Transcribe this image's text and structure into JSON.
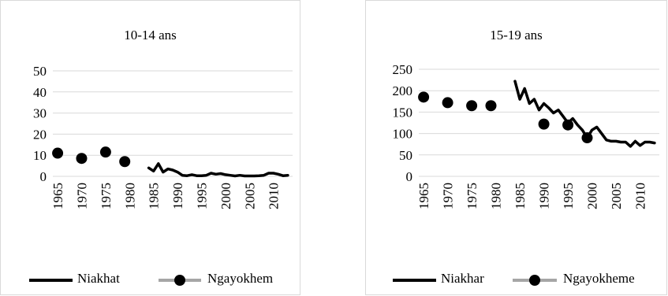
{
  "chart_data": [
    {
      "type": "line",
      "title": "10-14 ans",
      "xlabel": "",
      "ylabel": "",
      "ylim": [
        0,
        50
      ],
      "yticks": [
        "0",
        "10",
        "20",
        "30",
        "40",
        "50"
      ],
      "xlim": [
        1964,
        2014
      ],
      "xticks": [
        "1965",
        "1970",
        "1975",
        "1980",
        "1985",
        "1990",
        "1995",
        "2000",
        "2005",
        "2010"
      ],
      "grid": true,
      "legend": "bottom",
      "series": [
        {
          "name": "Niakhat",
          "style": "line",
          "color": "#000000",
          "x": [
            1984,
            1985,
            1986,
            1987,
            1988,
            1989,
            1990,
            1991,
            1992,
            1993,
            1994,
            1995,
            1996,
            1997,
            1998,
            1999,
            2000,
            2001,
            2002,
            2003,
            2004,
            2005,
            2006,
            2007,
            2008,
            2009,
            2010,
            2011,
            2012,
            2013
          ],
          "y": [
            4,
            2.5,
            6,
            2,
            3.5,
            3,
            2,
            0.5,
            0.3,
            0.8,
            0.3,
            0.3,
            0.5,
            1.5,
            1,
            1.3,
            0.8,
            0.5,
            0.2,
            0.5,
            0.2,
            0.2,
            0.2,
            0.3,
            0.5,
            1.5,
            1.5,
            1,
            0.3,
            0.5
          ]
        },
        {
          "name": "Ngayokhem",
          "style": "dots",
          "color": "#000000",
          "legend_line_color": "#a6a6a6",
          "x": [
            1965,
            1970,
            1975,
            1979
          ],
          "y": [
            11,
            8.5,
            11.5,
            7
          ]
        }
      ]
    },
    {
      "type": "line",
      "title": "15-19 ans",
      "xlabel": "",
      "ylabel": "",
      "ylim": [
        0,
        250
      ],
      "yticks": [
        "0",
        "50",
        "100",
        "150",
        "200",
        "250"
      ],
      "xlim": [
        1964,
        2014
      ],
      "xticks": [
        "1965",
        "1970",
        "1975",
        "1980",
        "1985",
        "1990",
        "1995",
        "2000",
        "2005",
        "2010"
      ],
      "grid": true,
      "legend": "bottom",
      "series": [
        {
          "name": "Niakhar",
          "style": "line",
          "color": "#000000",
          "x": [
            1984,
            1985,
            1986,
            1987,
            1988,
            1989,
            1990,
            1991,
            1992,
            1993,
            1994,
            1995,
            1996,
            1997,
            1998,
            1999,
            2000,
            2001,
            2002,
            2003,
            2004,
            2005,
            2006,
            2007,
            2008,
            2009,
            2010,
            2011,
            2012,
            2013
          ],
          "y": [
            222,
            180,
            205,
            170,
            180,
            155,
            170,
            160,
            148,
            155,
            140,
            125,
            135,
            120,
            108,
            90,
            108,
            115,
            100,
            85,
            82,
            82,
            80,
            80,
            70,
            82,
            72,
            80,
            80,
            78
          ]
        },
        {
          "name": "Ngayokheme",
          "style": "dots",
          "color": "#000000",
          "legend_line_color": "#a6a6a6",
          "x": [
            1965,
            1970,
            1975,
            1979,
            1990,
            1995,
            1999
          ],
          "y": [
            185,
            172,
            165,
            165,
            122,
            120,
            90
          ]
        }
      ]
    }
  ]
}
